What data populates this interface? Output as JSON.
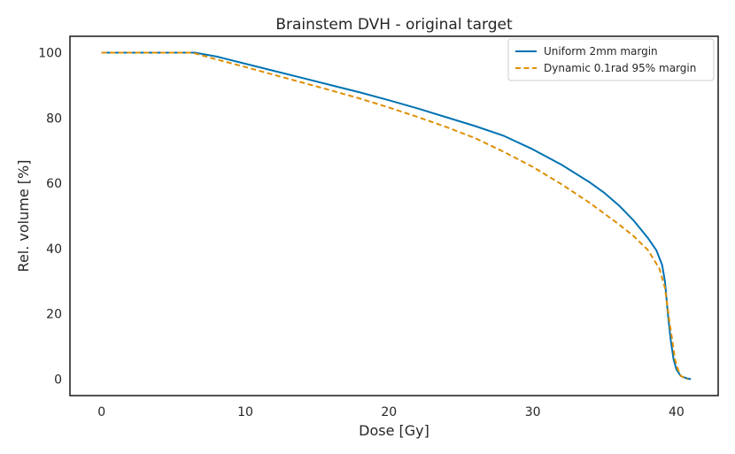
{
  "chart_data": {
    "type": "line",
    "title": "Brainstem DVH - original target",
    "xlabel": "Dose [Gy]",
    "ylabel": "Rel. volume [%]",
    "xlim": [
      -2.2,
      42.9
    ],
    "ylim": [
      -5,
      105
    ],
    "xticks": [
      0,
      10,
      20,
      30,
      40
    ],
    "yticks": [
      0,
      20,
      40,
      60,
      80,
      100
    ],
    "grid": false,
    "legend_position": "top-right",
    "series": [
      {
        "name": "Uniform 2mm margin",
        "color": "#0072b2",
        "style": "solid",
        "x": [
          0,
          6.5,
          8,
          10,
          12,
          14,
          16,
          18,
          20,
          22,
          24,
          26,
          28,
          30,
          32,
          34,
          35,
          36,
          37,
          38,
          38.6,
          39,
          39.2,
          39.4,
          39.6,
          39.8,
          40,
          40.3,
          40.7,
          41
        ],
        "y": [
          100,
          100,
          98.8,
          96.6,
          94.4,
          92.2,
          90,
          87.8,
          85.4,
          82.9,
          80.2,
          77.5,
          74.5,
          70.4,
          65.7,
          60.2,
          57,
          53.2,
          48.7,
          43.3,
          39.5,
          35,
          30,
          20,
          12,
          6,
          3,
          1,
          0.3,
          0
        ]
      },
      {
        "name": "Dynamic 0.1rad 95% margin",
        "color": "#de8f05",
        "style": "dashed",
        "x": [
          0,
          6.3,
          8,
          10,
          12,
          14,
          16,
          18,
          20,
          22,
          24,
          26,
          28,
          30,
          32,
          34,
          36,
          37,
          38,
          38.8,
          39.2,
          39.5,
          39.7,
          39.9,
          40.1,
          40.3,
          40.6,
          40.8
        ],
        "y": [
          100,
          100,
          97.9,
          95.6,
          93.2,
          90.8,
          88.4,
          85.9,
          83.2,
          80.3,
          77.2,
          73.8,
          69.6,
          65,
          59.7,
          53.9,
          47.4,
          43.9,
          39.6,
          34,
          28,
          18,
          12,
          6,
          3,
          1,
          0.3,
          0
        ]
      }
    ]
  }
}
